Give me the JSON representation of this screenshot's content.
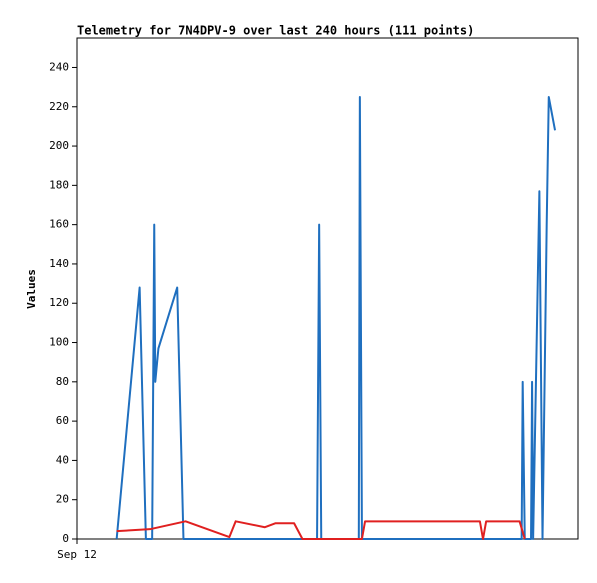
{
  "chart_data": {
    "type": "line",
    "title": "Telemetry for 7N4DPV-9 over last 240 hours (111 points)",
    "y_label": "Values",
    "xlim": [
      0,
      240
    ],
    "xticks": [
      {
        "value": 0,
        "label": "Sep 12"
      }
    ],
    "ylim": [
      0,
      255
    ],
    "yticks": [
      0,
      20,
      40,
      60,
      80,
      100,
      120,
      140,
      160,
      180,
      200,
      220,
      240
    ],
    "grid": false,
    "series": [
      {
        "color": "#1f6fbf",
        "x": [
          19,
          30,
          33,
          36,
          37,
          37.5,
          39,
          48,
          51,
          115,
          116,
          117,
          135,
          135.5,
          136.5,
          213,
          213.5,
          214.5,
          217.5,
          218,
          218.5,
          221.5,
          223,
          225,
          226,
          229
        ],
        "values": [
          0,
          128,
          0,
          0,
          160,
          80,
          97,
          128,
          0,
          0,
          160,
          0,
          0,
          225,
          0,
          0,
          80,
          0,
          0,
          80,
          0,
          177,
          0,
          160,
          225,
          208
        ]
      },
      {
        "color": "#e02020",
        "x": [
          19,
          35,
          52,
          73,
          76,
          90,
          95,
          104,
          108,
          136.5,
          138,
          193,
          194.5,
          196,
          212,
          214.5
        ],
        "values": [
          4,
          5,
          9,
          1,
          9,
          6,
          8,
          8,
          0,
          0,
          9,
          9,
          0,
          9,
          9,
          0
        ]
      }
    ]
  }
}
